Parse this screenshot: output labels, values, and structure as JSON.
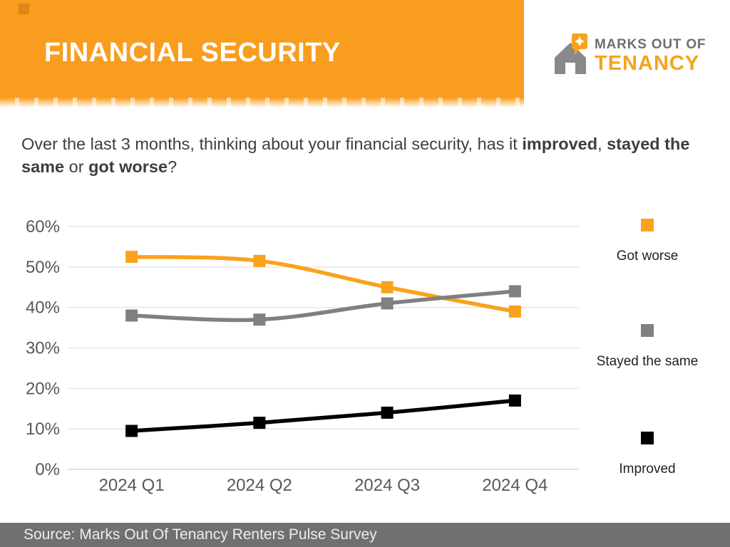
{
  "header": {
    "title": "FINANCIAL SECURITY",
    "accent_color": "#F99D1E"
  },
  "logo": {
    "line1": "MARKS OUT OF",
    "line2": "TENANCY",
    "gray_color": "#6D6E71",
    "orange_color": "#F5A31C"
  },
  "question": {
    "segments": [
      {
        "text": "Over the last 3 months, thinking about your financial security, has it ",
        "bold": false
      },
      {
        "text": "improved",
        "bold": true
      },
      {
        "text": ", ",
        "bold": false
      },
      {
        "text": "stayed the same",
        "bold": true
      },
      {
        "text": " or ",
        "bold": false
      },
      {
        "text": "got worse",
        "bold": true
      },
      {
        "text": "?",
        "bold": false
      }
    ]
  },
  "chart_data": {
    "type": "line",
    "categories": [
      "2024 Q1",
      "2024 Q2",
      "2024 Q3",
      "2024 Q4"
    ],
    "series": [
      {
        "name": "Got worse",
        "color": "#F9A21D",
        "values": [
          52.5,
          51.5,
          45,
          39
        ]
      },
      {
        "name": "Stayed the same",
        "color": "#808080",
        "values": [
          38,
          37,
          41,
          44
        ]
      },
      {
        "name": "Improved",
        "color": "#000000",
        "values": [
          9.5,
          11.5,
          14,
          17
        ]
      }
    ],
    "title": "",
    "xlabel": "",
    "ylabel": "",
    "ylim": [
      0,
      60
    ],
    "yticks": [
      0,
      10,
      20,
      30,
      40,
      50,
      60
    ],
    "ytick_labels": [
      "0%",
      "10%",
      "20%",
      "30%",
      "40%",
      "50%",
      "60%"
    ],
    "grid": true,
    "legend_position": "right",
    "marker": "square"
  },
  "footer": {
    "text": "Source: Marks Out Of Tenancy Renters Pulse Survey"
  }
}
